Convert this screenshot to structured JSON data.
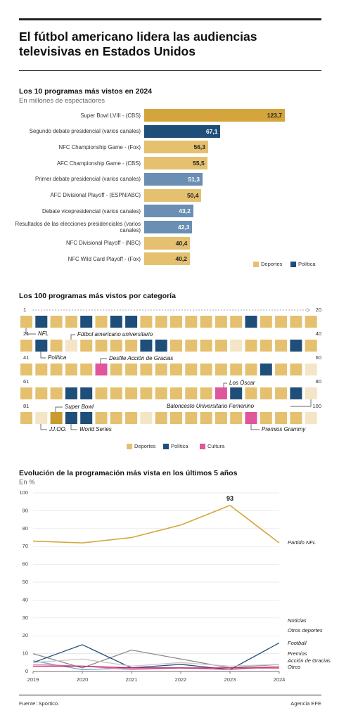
{
  "header": {
    "title": "El fútbol americano lidera las audiencias televisivas en Estados Unidos"
  },
  "chart_data": [
    {
      "type": "bar",
      "title": "Los 10 programas más vistos en 2024",
      "subtitle": "En millones de espectadores",
      "categories": [
        "Super Bowl LVIII - (CBS)",
        "Segundo debate presidencial (varios canales)",
        "NFC Championship Game - (Fox)",
        "AFC Championship Game - (CBS)",
        "Primer debate presidencial (varios canales)",
        "AFC Divisional Playoff - (ESPN/ABC)",
        "Debate vicepresidencial (varios canales)",
        "Resultados de las elecciones presidenciales (varios canales)",
        "NFC Divisional Playoff - (NBC)",
        "NFC Wild Card Playoff - (Fox)"
      ],
      "values": [
        123.7,
        67.1,
        56.3,
        55.5,
        51.3,
        50.4,
        43.2,
        42.3,
        40.4,
        40.2
      ],
      "value_labels": [
        "123,7",
        "67,1",
        "56,3",
        "55,5",
        "51,3",
        "50,4",
        "43,2",
        "42,3",
        "40,4",
        "40,2"
      ],
      "colors": [
        "#d4a53c",
        "#1f4e79",
        "#e4c06f",
        "#e4c06f",
        "#6a8fb3",
        "#e4c06f",
        "#6a8fb3",
        "#6a8fb3",
        "#e4c06f",
        "#e4c06f"
      ],
      "legend": [
        {
          "name": "Deportes",
          "color": "#e4c06f"
        },
        {
          "name": "Política",
          "color": "#1f4e79"
        }
      ]
    },
    {
      "type": "waffle",
      "title": "Los 100 programas más vistos por categoría",
      "row_starts": [
        1,
        21,
        41,
        61,
        81
      ],
      "row_ends": [
        20,
        40,
        60,
        80,
        100
      ],
      "cell_colors": [
        "#e4c06f",
        "#1f4e79",
        "#e0569a",
        "#f3e5c6",
        "#c99a2e"
      ],
      "cells": [
        0,
        1,
        0,
        0,
        1,
        0,
        1,
        1,
        0,
        0,
        0,
        0,
        0,
        0,
        0,
        1,
        0,
        0,
        0,
        0,
        0,
        1,
        0,
        3,
        0,
        0,
        0,
        0,
        1,
        1,
        0,
        0,
        0,
        0,
        3,
        0,
        0,
        0,
        1,
        0,
        0,
        0,
        0,
        0,
        0,
        2,
        0,
        0,
        0,
        0,
        0,
        0,
        0,
        0,
        0,
        0,
        1,
        0,
        0,
        3,
        0,
        0,
        0,
        1,
        1,
        0,
        0,
        0,
        0,
        0,
        0,
        0,
        0,
        2,
        1,
        0,
        0,
        0,
        1,
        3,
        0,
        3,
        4,
        1,
        1,
        0,
        0,
        0,
        3,
        0,
        0,
        0,
        0,
        0,
        0,
        2,
        0,
        0,
        0,
        3
      ],
      "annotations": [
        "NFL",
        "Fútbol americano universitario",
        "Política",
        "Desfile Acción de Gracias",
        "Los Óscar",
        "Baloncesto Universitario Femenino",
        "Super Bowl",
        "JJ.OO.",
        "World Series",
        "Premios Grammy"
      ],
      "legend": [
        {
          "name": "Deportes",
          "color": "#e4c06f"
        },
        {
          "name": "Política",
          "color": "#1f4e79"
        },
        {
          "name": "Cultura",
          "color": "#e0569a"
        }
      ]
    },
    {
      "type": "line",
      "title": "Evolución de la programación más vista en los últimos 5 años",
      "subtitle": "En %",
      "x": [
        2019,
        2020,
        2021,
        2022,
        2023,
        2024
      ],
      "xlim": [
        2019,
        2024
      ],
      "xticks": [
        2019,
        2020,
        2021,
        2022,
        2023,
        2024
      ],
      "ylim": [
        0,
        100
      ],
      "yticks": [
        0,
        10,
        20,
        30,
        40,
        50,
        60,
        70,
        80,
        90,
        100
      ],
      "grid": true,
      "series": [
        {
          "name": "Partido NFL",
          "color": "#d4a53c",
          "values": [
            73,
            72,
            75,
            82,
            93,
            72
          ]
        },
        {
          "name": "Noticias",
          "color": "#6aa6d8",
          "values": [
            6,
            1,
            2,
            2,
            1,
            3
          ]
        },
        {
          "name": "Otros deportes",
          "color": "#8a8a8a",
          "values": [
            10,
            2,
            12,
            7,
            2,
            4
          ]
        },
        {
          "name": "Football",
          "color": "#1f4e79",
          "values": [
            5,
            15,
            2,
            4,
            1,
            16
          ]
        },
        {
          "name": "Premios",
          "color": "#e87bb0",
          "values": [
            4,
            3,
            1,
            2,
            1,
            3
          ]
        },
        {
          "name": "Acción de Gracias",
          "color": "#c2185b",
          "values": [
            3,
            3,
            2,
            2,
            2,
            2
          ]
        },
        {
          "name": "Otros",
          "color": "#c8c8c8",
          "values": [
            5,
            7,
            3,
            5,
            3,
            4
          ]
        }
      ]
    }
  ],
  "footer": {
    "source": "Fuente: Sportico.",
    "agency": "Agencia EFE"
  }
}
